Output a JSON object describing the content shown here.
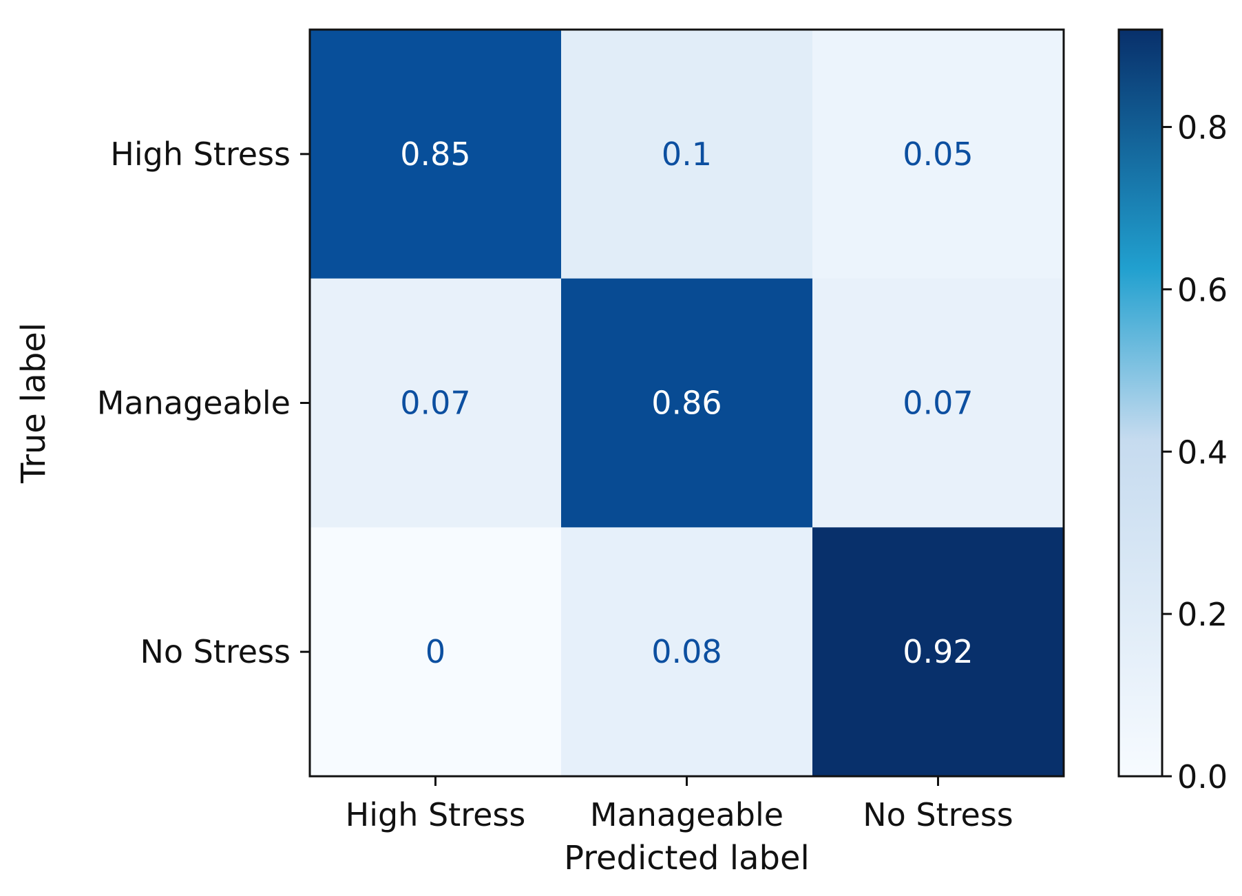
{
  "chart_data": {
    "type": "heatmap",
    "title": "",
    "xlabel": "Predicted label",
    "ylabel": "True label",
    "x_categories": [
      "High Stress",
      "Manageable",
      "No Stress"
    ],
    "y_categories": [
      "High Stress",
      "Manageable",
      "No Stress"
    ],
    "values": [
      [
        0.85,
        0.1,
        0.05
      ],
      [
        0.07,
        0.86,
        0.07
      ],
      [
        0,
        0.08,
        0.92
      ]
    ],
    "value_labels": [
      [
        "0.85",
        "0.1",
        "0.05"
      ],
      [
        "0.07",
        "0.86",
        "0.07"
      ],
      [
        "0",
        "0.08",
        "0.92"
      ]
    ],
    "colormap": "Blues",
    "colorbar": {
      "range": [
        0,
        0.92
      ],
      "ticks": [
        0.0,
        0.2,
        0.4,
        0.6,
        0.8
      ],
      "tick_labels": [
        "0.0",
        "0.2",
        "0.4",
        "0.6",
        "0.8"
      ]
    },
    "colors": {
      "dark_text": "#0c4fa0",
      "light_text": "#ffffff",
      "colorbar_low": "#f7fbff",
      "colorbar_mid": "#21a0cf",
      "colorbar_high": "#08306b"
    },
    "grid": false,
    "legend": "colorbar right"
  }
}
